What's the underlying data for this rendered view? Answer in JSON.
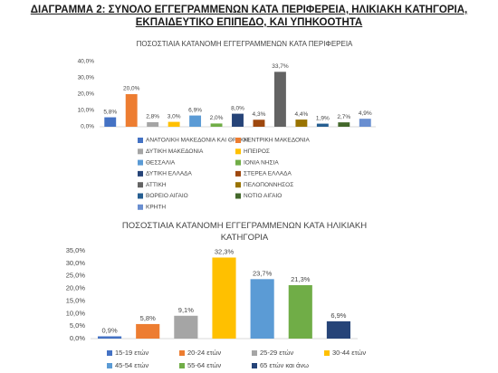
{
  "header": {
    "title": "ΔΙΑΓΡΑΜΜΑ 2: ΣΥΝΟΛΟ ΕΓΓΕΓΡΑΜΜΕΝΩΝ ΚΑΤΑ ΠΕΡΙΦΕΡΕΙΑ, ΗΛΙΚΙΑΚΗ ΚΑΤΗΓΟΡΙΑ, ΕΚΠΑΙΔΕΥΤΙΚΟ ΕΠΙΠΕΔΟ, ΚΑΙ ΥΠΗΚΟΟΤΗΤΑ"
  },
  "chart_data": [
    {
      "type": "bar",
      "title": "ΠΟΣΟΣΤΙΑΙΑ ΚΑΤΑΝΟΜΗ ΕΓΓΕΓΡΑΜΜΕΝΩΝ ΚΑΤΑ ΠΕΡΙΦΕΡΕΙΑ",
      "categories": [
        "ΑΝΑΤΟΛΙΚΗ ΜΑΚΕΔΟΝΙΑ ΚΑΙ ΘΡΑΚΗ",
        "ΚΕΝΤΡΙΚΗ ΜΑΚΕΔΟΝΙΑ",
        "ΔΥΤΙΚΗ ΜΑΚΕΔΟΝΙΑ",
        "ΗΠΕΙΡΟΣ",
        "ΘΕΣΣΑΛΙΑ",
        "ΙΟΝΙΑ ΝΗΣΙΑ",
        "ΔΥΤΙΚΗ ΕΛΛΑΔΑ",
        "ΣΤΕΡΕΑ ΕΛΛΑΔΑ",
        "ΑΤΤΙΚΗ",
        "ΠΕΛΟΠΟΝΝΗΣΟΣ",
        "ΒΟΡΕΙΟ ΑΙΓΑΙΟ",
        "ΝΟΤΙΟ ΑΙΓΑΙΟ",
        "ΚΡΗΤΗ"
      ],
      "values": [
        5.8,
        20.0,
        2.8,
        3.0,
        6.9,
        2.0,
        8.0,
        4.3,
        33.7,
        4.4,
        1.9,
        2.7,
        4.9
      ],
      "value_labels": [
        "5,8%",
        "20,0%",
        "2,8%",
        "3,0%",
        "6,9%",
        "2,0%",
        "8,0%",
        "4,3%",
        "33,7%",
        "4,4%",
        "1,9%",
        "2,7%",
        "4,9%"
      ],
      "colors": [
        "#4472c4",
        "#ed7d31",
        "#a5a5a5",
        "#ffc000",
        "#5b9bd5",
        "#70ad47",
        "#264478",
        "#9e480e",
        "#636363",
        "#997300",
        "#255e91",
        "#43682b",
        "#698ed0"
      ],
      "ylim": [
        0,
        40
      ],
      "yticks": [
        {
          "value": 0,
          "label": "0,0%"
        },
        {
          "value": 10,
          "label": "10,0%"
        },
        {
          "value": 20,
          "label": "20,0%"
        },
        {
          "value": 30,
          "label": "30,0%"
        },
        {
          "value": 40,
          "label": "40,0%"
        }
      ]
    },
    {
      "type": "bar",
      "title": "ΠΟΣΟΣΤΙΑΙΑ ΚΑΤΑΝΟΜΗ ΕΓΓΕΓΡΑΜΜΕΝΩΝ ΚΑΤΑ ΗΛΙΚΙΑΚΗ ΚΑΤΗΓΟΡΙΑ",
      "categories": [
        "15-19 ετών",
        "20-24 ετών",
        "25-29 ετών",
        "30-44 ετών",
        "45-54 ετών",
        "55-64 ετών",
        "65 ετών και άνω"
      ],
      "values": [
        0.9,
        5.8,
        9.1,
        32.3,
        23.7,
        21.3,
        6.9
      ],
      "value_labels": [
        "0,9%",
        "5,8%",
        "9,1%",
        "32,3%",
        "23,7%",
        "21,3%",
        "6,9%"
      ],
      "colors": [
        "#4472c4",
        "#ed7d31",
        "#a5a5a5",
        "#ffc000",
        "#5b9bd5",
        "#70ad47",
        "#264478"
      ],
      "ylim": [
        0,
        35
      ],
      "yticks": [
        {
          "value": 0,
          "label": "0,0%"
        },
        {
          "value": 5,
          "label": "5,0%"
        },
        {
          "value": 10,
          "label": "10,0%"
        },
        {
          "value": 15,
          "label": "15,0%"
        },
        {
          "value": 20,
          "label": "20,0%"
        },
        {
          "value": 25,
          "label": "25,0%"
        },
        {
          "value": 30,
          "label": "30,0%"
        },
        {
          "value": 35,
          "label": "35,0%"
        }
      ]
    }
  ]
}
